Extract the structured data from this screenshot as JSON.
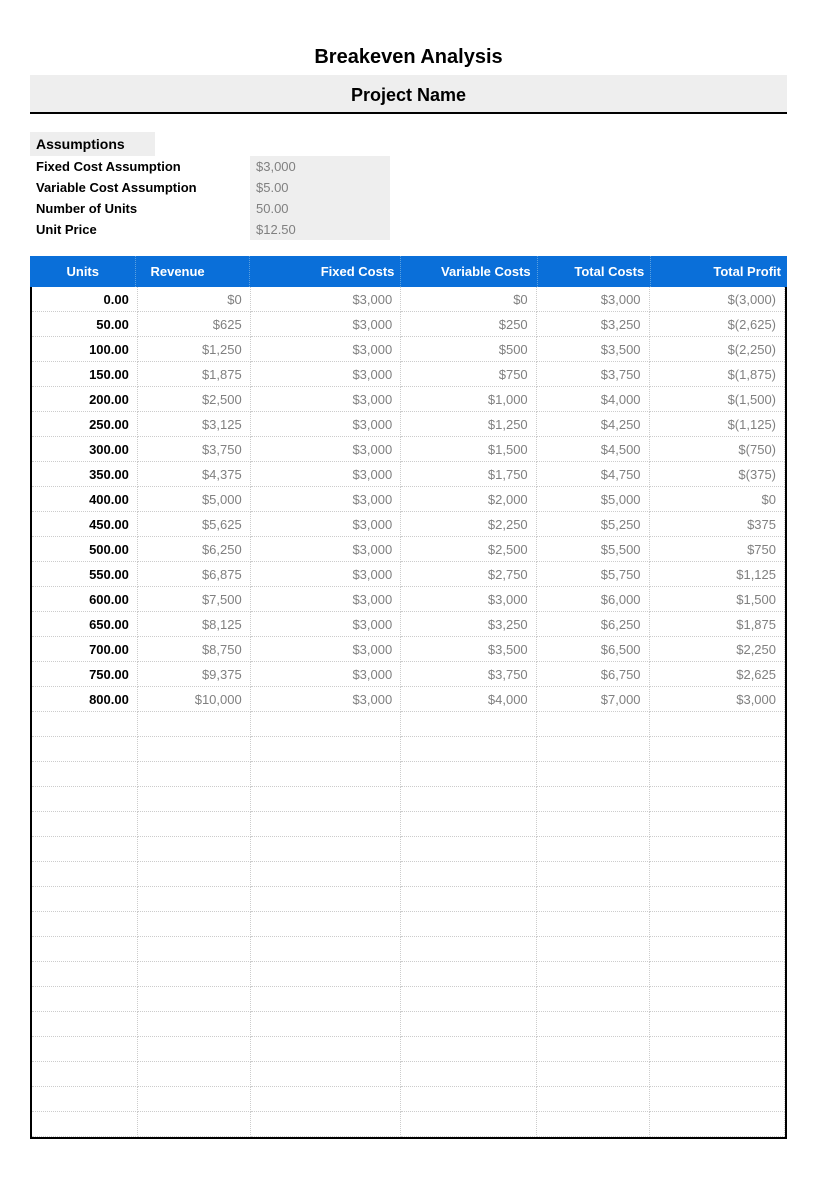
{
  "header": {
    "title": "Breakeven Analysis",
    "project": "Project Name"
  },
  "assumptions": {
    "header": "Assumptions",
    "rows": [
      {
        "label": "Fixed Cost Assumption",
        "value": "$3,000"
      },
      {
        "label": "Variable Cost Assumption",
        "value": "$5.00"
      },
      {
        "label": "Number of Units",
        "value": "50.00"
      },
      {
        "label": "Unit Price",
        "value": "$12.50"
      }
    ]
  },
  "table": {
    "columns": [
      "Units",
      "Revenue",
      "Fixed Costs",
      "Variable Costs",
      "Total Costs",
      "Total Profit"
    ],
    "header_bg": "#0a6fd9",
    "header_fg": "#ffffff",
    "grid_color": "#cccccc",
    "value_color": "#808080",
    "rows": [
      [
        "0.00",
        "$0",
        "$3,000",
        "$0",
        "$3,000",
        "$(3,000)"
      ],
      [
        "50.00",
        "$625",
        "$3,000",
        "$250",
        "$3,250",
        "$(2,625)"
      ],
      [
        "100.00",
        "$1,250",
        "$3,000",
        "$500",
        "$3,500",
        "$(2,250)"
      ],
      [
        "150.00",
        "$1,875",
        "$3,000",
        "$750",
        "$3,750",
        "$(1,875)"
      ],
      [
        "200.00",
        "$2,500",
        "$3,000",
        "$1,000",
        "$4,000",
        "$(1,500)"
      ],
      [
        "250.00",
        "$3,125",
        "$3,000",
        "$1,250",
        "$4,250",
        "$(1,125)"
      ],
      [
        "300.00",
        "$3,750",
        "$3,000",
        "$1,500",
        "$4,500",
        "$(750)"
      ],
      [
        "350.00",
        "$4,375",
        "$3,000",
        "$1,750",
        "$4,750",
        "$(375)"
      ],
      [
        "400.00",
        "$5,000",
        "$3,000",
        "$2,000",
        "$5,000",
        "$0"
      ],
      [
        "450.00",
        "$5,625",
        "$3,000",
        "$2,250",
        "$5,250",
        "$375"
      ],
      [
        "500.00",
        "$6,250",
        "$3,000",
        "$2,500",
        "$5,500",
        "$750"
      ],
      [
        "550.00",
        "$6,875",
        "$3,000",
        "$2,750",
        "$5,750",
        "$1,125"
      ],
      [
        "600.00",
        "$7,500",
        "$3,000",
        "$3,000",
        "$6,000",
        "$1,500"
      ],
      [
        "650.00",
        "$8,125",
        "$3,000",
        "$3,250",
        "$6,250",
        "$1,875"
      ],
      [
        "700.00",
        "$8,750",
        "$3,000",
        "$3,500",
        "$6,500",
        "$2,250"
      ],
      [
        "750.00",
        "$9,375",
        "$3,000",
        "$3,750",
        "$6,750",
        "$2,625"
      ],
      [
        "800.00",
        "$10,000",
        "$3,000",
        "$4,000",
        "$7,000",
        "$3,000"
      ]
    ],
    "empty_rows": 17
  }
}
